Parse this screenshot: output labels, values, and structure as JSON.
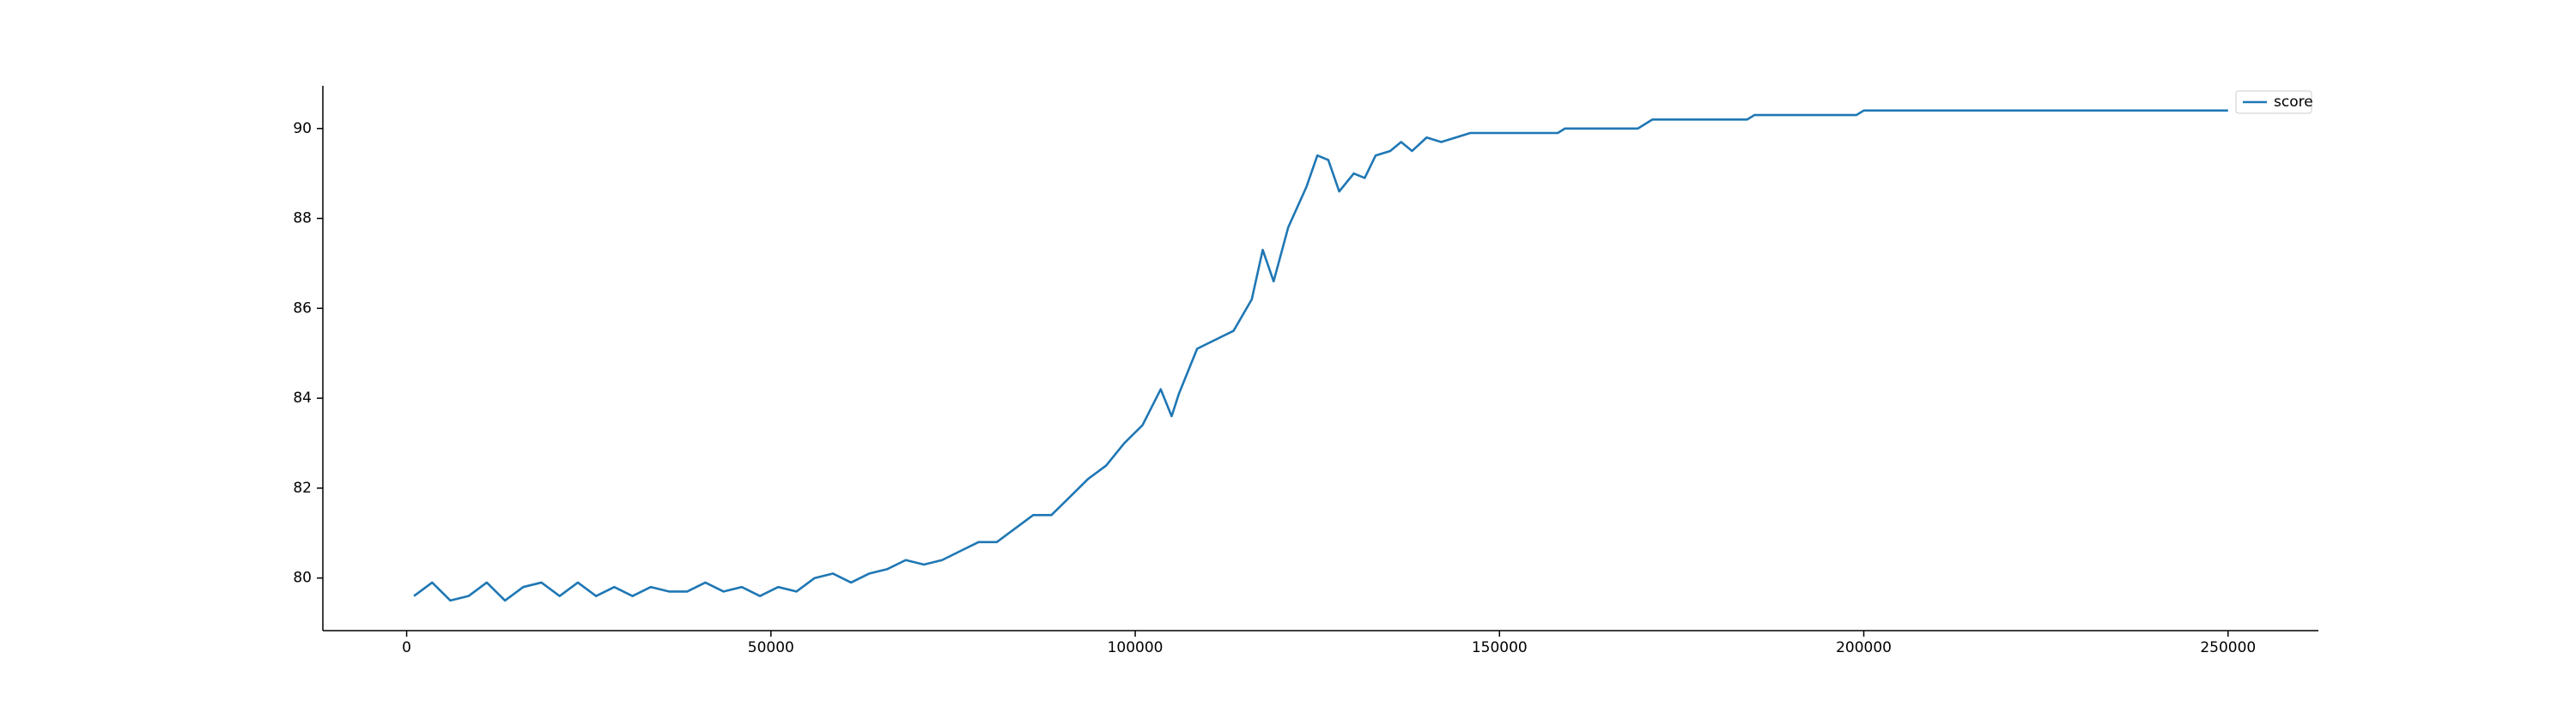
{
  "chart_data": {
    "type": "line",
    "legend": "upper right",
    "x": [
      1000,
      3500,
      6000,
      8500,
      11000,
      13500,
      16000,
      18500,
      21000,
      23500,
      26000,
      28500,
      31000,
      33500,
      36000,
      38500,
      41000,
      43500,
      46000,
      48500,
      51000,
      53500,
      56000,
      58500,
      61000,
      63500,
      66000,
      68500,
      71000,
      73500,
      76000,
      78500,
      81000,
      83500,
      86000,
      88500,
      91000,
      93500,
      96000,
      98500,
      101000,
      103500,
      105000,
      106000,
      108500,
      111000,
      113500,
      116000,
      117500,
      119000,
      121000,
      123500,
      125000,
      126500,
      128000,
      130000,
      131500,
      133000,
      135000,
      136500,
      138000,
      140000,
      142000,
      144000,
      146000,
      158000,
      159000,
      169000,
      171000,
      184000,
      185000,
      199000,
      200000,
      250000
    ],
    "series": [
      {
        "name": "score",
        "color": "#1f77b4",
        "values": [
          79.6,
          79.9,
          79.5,
          79.6,
          79.9,
          79.5,
          79.8,
          79.9,
          79.6,
          79.9,
          79.6,
          79.8,
          79.6,
          79.8,
          79.7,
          79.7,
          79.9,
          79.7,
          79.8,
          79.6,
          79.8,
          79.7,
          80.0,
          80.1,
          79.9,
          80.1,
          80.2,
          80.4,
          80.3,
          80.4,
          80.6,
          80.8,
          80.8,
          81.1,
          81.4,
          81.4,
          81.8,
          82.2,
          82.5,
          83.0,
          83.4,
          84.2,
          83.6,
          84.1,
          85.1,
          85.3,
          85.5,
          86.2,
          87.3,
          86.6,
          87.8,
          88.7,
          89.4,
          89.3,
          88.6,
          89.0,
          88.9,
          89.4,
          89.5,
          89.7,
          89.5,
          89.8,
          89.7,
          89.8,
          89.9,
          89.9,
          90.0,
          90.0,
          90.2,
          90.2,
          90.3,
          90.3,
          90.4,
          90.4
        ]
      }
    ],
    "xlim": [
      -11500,
      262400
    ],
    "xticks": [
      0,
      50000,
      100000,
      150000,
      200000,
      250000
    ],
    "ylim": [
      78.83,
      90.95
    ],
    "yticks": [
      80,
      82,
      84,
      86,
      88,
      90
    ]
  }
}
